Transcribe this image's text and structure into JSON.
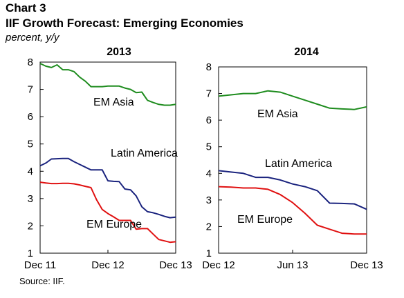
{
  "header": {
    "number": "Chart 3",
    "title": "IIF Growth Forecast: Emerging Economies",
    "units": "percent, y/y"
  },
  "source": "Source: IIF.",
  "chart_data": [
    {
      "type": "line",
      "title": "2013",
      "xlabel": "",
      "ylabel": "",
      "ylim": [
        1,
        8
      ],
      "yticks": [
        "1",
        "2",
        "3",
        "4",
        "5",
        "6",
        "7",
        "8"
      ],
      "xlim": [
        0,
        24
      ],
      "xticks": [
        {
          "x": 0,
          "label": "Dec 11"
        },
        {
          "x": 12,
          "label": "Dec 12"
        },
        {
          "x": 24,
          "label": "Dec 13"
        }
      ],
      "grid": false,
      "series": [
        {
          "name": "EM Asia",
          "color": "#1e8c1e",
          "x": [
            0,
            1,
            2,
            3,
            4,
            5,
            6,
            7,
            8,
            9,
            10,
            11,
            12,
            13,
            14,
            15,
            16,
            17,
            18,
            19,
            20,
            21,
            22,
            23,
            24
          ],
          "y": [
            7.95,
            7.85,
            7.8,
            7.9,
            7.72,
            7.72,
            7.65,
            7.45,
            7.3,
            7.1,
            7.1,
            7.1,
            7.12,
            7.12,
            7.12,
            7.05,
            7.0,
            6.88,
            6.9,
            6.6,
            6.52,
            6.45,
            6.42,
            6.42,
            6.45
          ]
        },
        {
          "name": "Latin America",
          "color": "#1a237e",
          "x": [
            0,
            1,
            2,
            3,
            4,
            5,
            6,
            7,
            8,
            9,
            10,
            11,
            12,
            13,
            14,
            15,
            16,
            17,
            18,
            19,
            20,
            21,
            22,
            23,
            24
          ],
          "y": [
            4.2,
            4.3,
            4.45,
            4.46,
            4.47,
            4.47,
            4.35,
            4.25,
            4.15,
            4.05,
            4.05,
            4.05,
            3.65,
            3.63,
            3.62,
            3.35,
            3.32,
            3.1,
            2.7,
            2.52,
            2.48,
            2.42,
            2.35,
            2.3,
            2.32
          ]
        },
        {
          "name": "EM Europe",
          "color": "#e01010",
          "x": [
            0,
            1,
            2,
            3,
            4,
            5,
            6,
            7,
            8,
            9,
            10,
            11,
            12,
            13,
            14,
            15,
            16,
            17,
            18,
            19,
            20,
            21,
            22,
            23,
            24
          ],
          "y": [
            3.6,
            3.57,
            3.55,
            3.55,
            3.56,
            3.56,
            3.54,
            3.5,
            3.45,
            3.4,
            2.95,
            2.6,
            2.45,
            2.33,
            2.2,
            2.2,
            2.2,
            1.88,
            1.9,
            1.9,
            1.7,
            1.5,
            1.45,
            1.4,
            1.42
          ]
        }
      ]
    },
    {
      "type": "line",
      "title": "2014",
      "xlabel": "",
      "ylabel": "",
      "ylim": [
        1,
        8
      ],
      "yticks": [
        "1",
        "2",
        "3",
        "4",
        "5",
        "6",
        "7",
        "8"
      ],
      "xlim": [
        0,
        12
      ],
      "xticks": [
        {
          "x": 0,
          "label": "Dec 12"
        },
        {
          "x": 6,
          "label": "Jun 13"
        },
        {
          "x": 12,
          "label": "Dec 13"
        }
      ],
      "grid": false,
      "series": [
        {
          "name": "EM Asia",
          "color": "#1e8c1e",
          "x": [
            0,
            1,
            2,
            3,
            4,
            5,
            6,
            7,
            8,
            9,
            10,
            11,
            12
          ],
          "y": [
            6.9,
            6.95,
            7.0,
            7.0,
            7.1,
            7.05,
            6.9,
            6.75,
            6.6,
            6.45,
            6.42,
            6.4,
            6.5
          ]
        },
        {
          "name": "Latin America",
          "color": "#1a237e",
          "x": [
            0,
            1,
            2,
            3,
            4,
            5,
            6,
            7,
            8,
            9,
            10,
            11,
            12
          ],
          "y": [
            4.1,
            4.05,
            4.0,
            3.85,
            3.85,
            3.75,
            3.6,
            3.5,
            3.35,
            2.88,
            2.87,
            2.85,
            2.65
          ]
        },
        {
          "name": "EM Europe",
          "color": "#e01010",
          "x": [
            0,
            1,
            2,
            3,
            4,
            5,
            6,
            7,
            8,
            9,
            10,
            11,
            12
          ],
          "y": [
            3.5,
            3.48,
            3.45,
            3.45,
            3.4,
            3.2,
            2.9,
            2.5,
            2.05,
            1.9,
            1.75,
            1.72,
            1.72
          ]
        }
      ]
    }
  ]
}
